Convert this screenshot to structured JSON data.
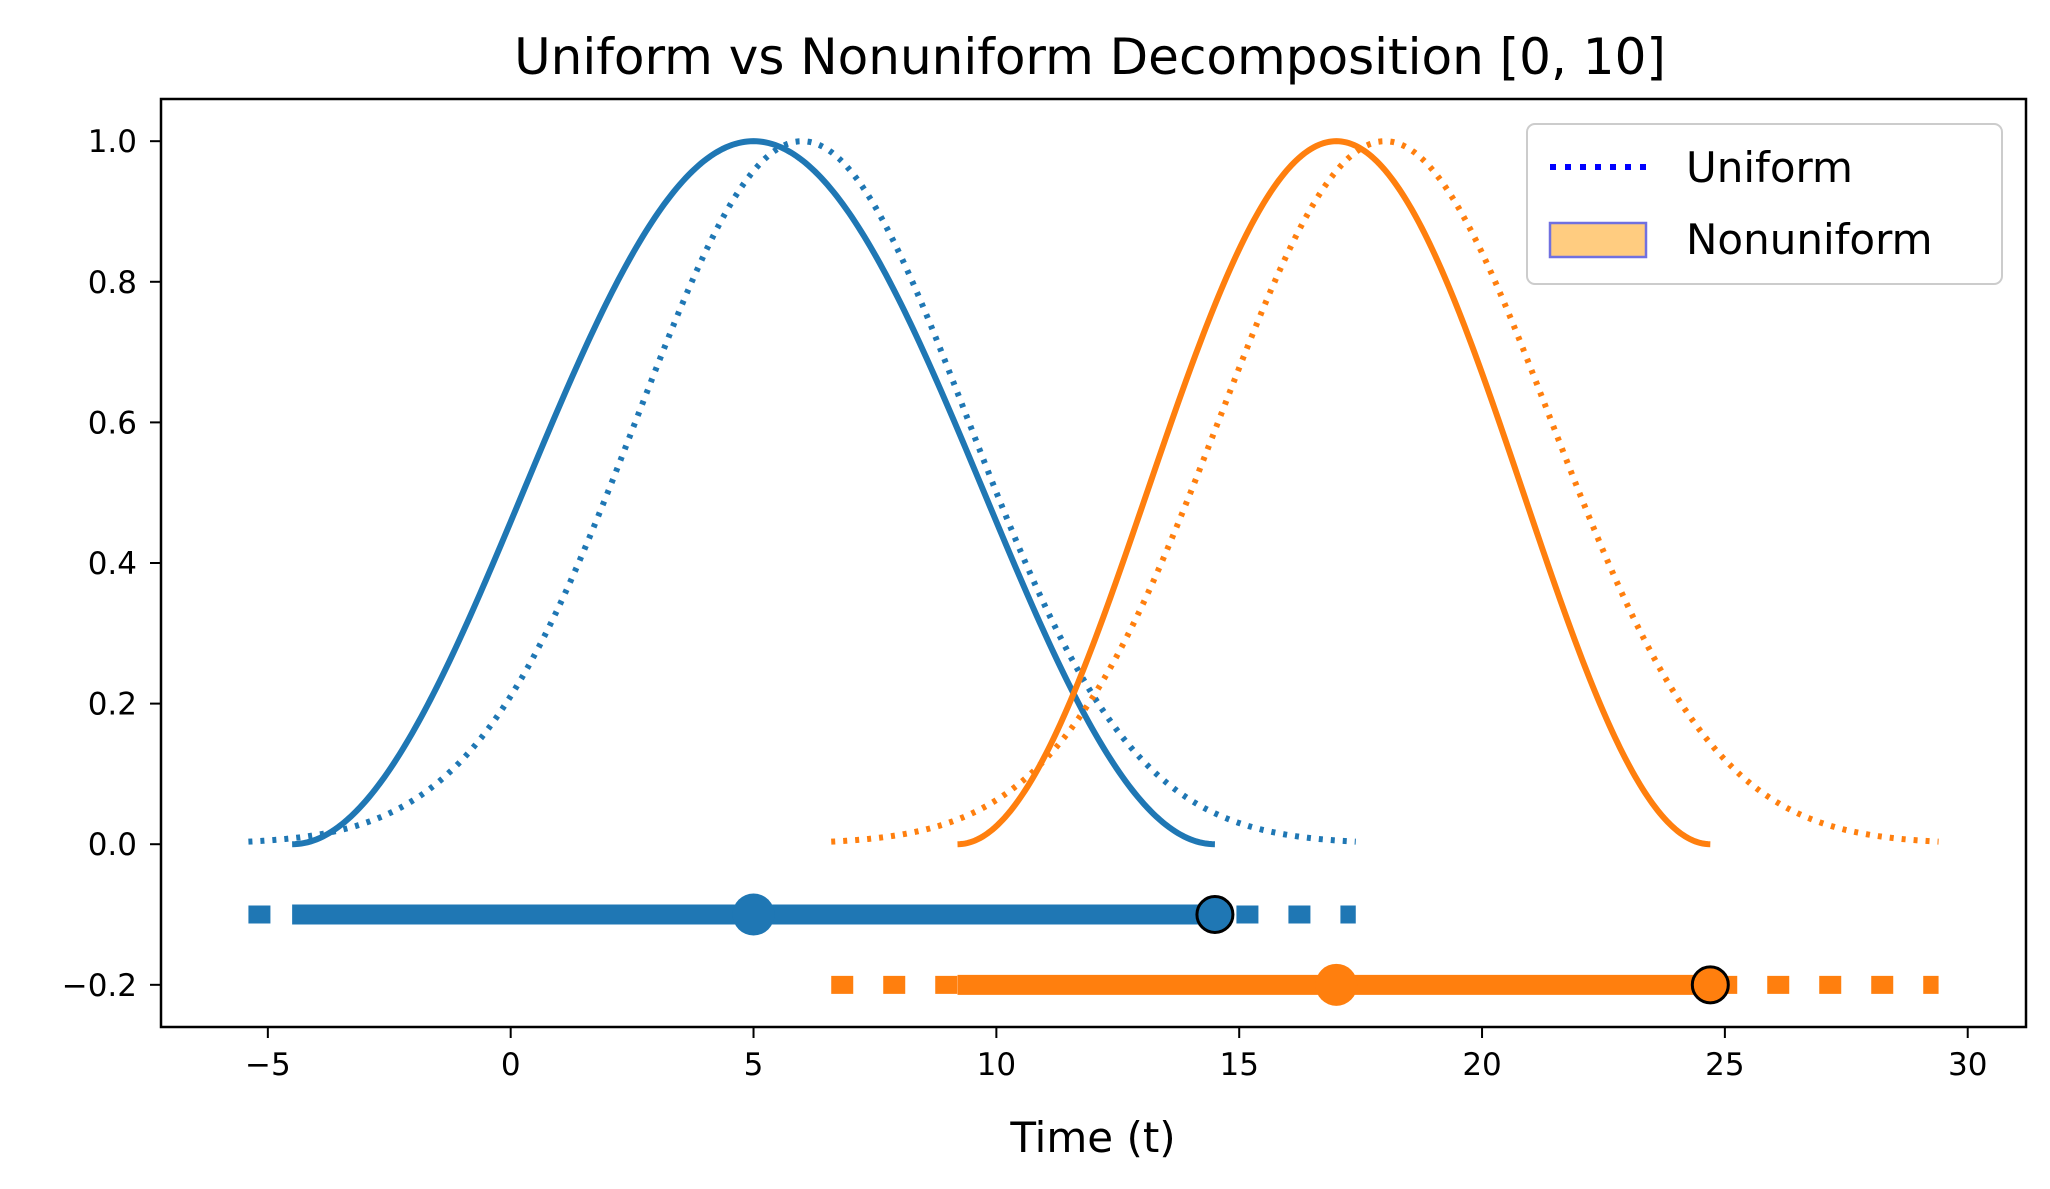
{
  "chart_data": {
    "type": "line",
    "title": "Uniform vs Nonuniform Decomposition [0, 10]",
    "xlabel": "Time (t)",
    "ylabel": "",
    "xlim": [
      -7.2,
      31.2
    ],
    "ylim": [
      -0.26,
      1.06
    ],
    "xticks": [
      -5,
      0,
      5,
      10,
      15,
      20,
      25,
      30
    ],
    "xtick_labels": [
      "−5",
      "0",
      "5",
      "10",
      "15",
      "20",
      "25",
      "30"
    ],
    "yticks": [
      1.0,
      0.8,
      0.6,
      0.4,
      0.2,
      0.0,
      -0.2
    ],
    "ytick_labels": [
      "1.0",
      "0.8",
      "0.6",
      "0.4",
      "0.2",
      "0.0",
      "−0.2"
    ],
    "legend": {
      "position": "top-right",
      "entries": [
        {
          "label": "Uniform",
          "style": "dotted-line",
          "color": "#0000ff"
        },
        {
          "label": "Nonuniform",
          "style": "patch",
          "color": "#ffcc80",
          "edge": "#7070e0"
        }
      ]
    },
    "series": [
      {
        "name": "nonuniform-1",
        "style": "solid",
        "color": "#1f77b4",
        "shape": "cos-bump",
        "center": 5.0,
        "left": -4.5,
        "right": 14.5,
        "width": 6
      },
      {
        "name": "uniform-1",
        "style": "dotted",
        "color": "#1f77b4",
        "shape": "gaussian",
        "center": 6.0,
        "sigma": 3.4,
        "left": -5.4,
        "right": 17.4,
        "width": 6
      },
      {
        "name": "nonuniform-2",
        "style": "solid",
        "color": "#ff7f0e",
        "shape": "cos-bump",
        "center": 17.0,
        "left": 9.2,
        "right": 24.7,
        "width": 6
      },
      {
        "name": "uniform-2",
        "style": "dotted",
        "color": "#ff7f0e",
        "shape": "gaussian",
        "center": 18.0,
        "sigma": 3.4,
        "left": 6.6,
        "right": 29.4,
        "width": 6
      }
    ],
    "intervals": [
      {
        "name": "interval-1",
        "color": "#1f77b4",
        "y": -0.1,
        "solid_start": -4.5,
        "solid_end": 14.5,
        "dotted_start": -5.4,
        "dotted_end": 17.4,
        "center": 5.0,
        "marker_end": 14.5
      },
      {
        "name": "interval-2",
        "color": "#ff7f0e",
        "y": -0.2,
        "solid_start": 9.2,
        "solid_end": 24.7,
        "dotted_start": 6.6,
        "dotted_end": 29.4,
        "center": 17.0,
        "marker_end": 24.7
      }
    ]
  }
}
